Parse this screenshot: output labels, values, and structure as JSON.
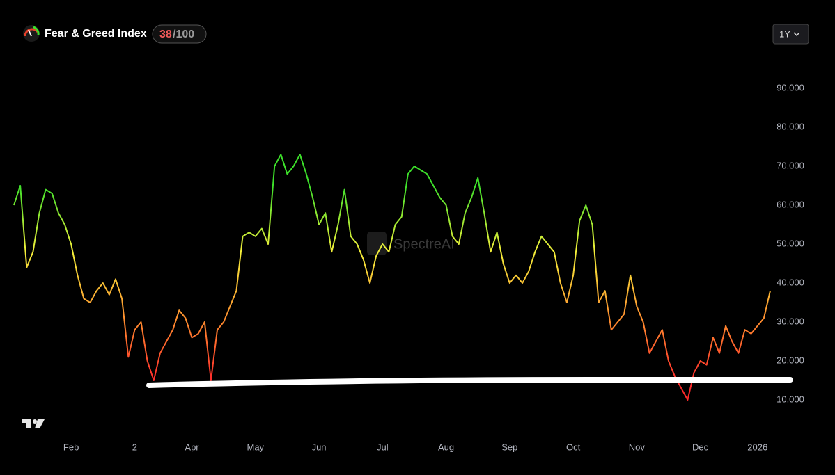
{
  "header": {
    "title": "Fear & Greed Index",
    "badge": {
      "value": 38,
      "total": "/100"
    },
    "range_button": "1Y",
    "watermark": "SpectreAI"
  },
  "chart_data": {
    "type": "line",
    "categories": [
      null,
      null,
      null,
      null,
      null,
      null,
      null,
      null,
      null,
      "Feb",
      null,
      null,
      null,
      null,
      null,
      null,
      null,
      null,
      null,
      "2",
      null,
      null,
      null,
      null,
      null,
      null,
      null,
      null,
      "Apr",
      null,
      null,
      null,
      null,
      null,
      null,
      null,
      null,
      null,
      "May",
      null,
      null,
      null,
      null,
      null,
      null,
      null,
      null,
      null,
      "Jun",
      null,
      null,
      null,
      null,
      null,
      null,
      null,
      null,
      null,
      "Jul",
      null,
      null,
      null,
      null,
      null,
      null,
      null,
      null,
      null,
      "Aug",
      null,
      null,
      null,
      null,
      null,
      null,
      null,
      null,
      null,
      "Sep",
      null,
      null,
      null,
      null,
      null,
      null,
      null,
      null,
      null,
      "Oct",
      null,
      null,
      null,
      null,
      null,
      null,
      null,
      null,
      null,
      "Nov",
      null,
      null,
      null,
      null,
      null,
      null,
      null,
      null,
      null,
      "Dec",
      null,
      null,
      null,
      null,
      null,
      null,
      null,
      null,
      "2026",
      null,
      null
    ],
    "series": [
      {
        "values": [
          60,
          65,
          44,
          48,
          58,
          64,
          63,
          58,
          55,
          50,
          42,
          36,
          35,
          38,
          40,
          37,
          41,
          36,
          21,
          28,
          30,
          20,
          15,
          22,
          25,
          28,
          33,
          31,
          26,
          27,
          30,
          15,
          28,
          30,
          34,
          38,
          52,
          53,
          52,
          54,
          50,
          70,
          73,
          68,
          70,
          73,
          68,
          62,
          55,
          58,
          48,
          55,
          64,
          52,
          50,
          46,
          40,
          47,
          50,
          48,
          55,
          57,
          68,
          70,
          69,
          68,
          65,
          62,
          60,
          52,
          50,
          58,
          62,
          67,
          58,
          48,
          53,
          45,
          40,
          42,
          40,
          43,
          48,
          52,
          50,
          48,
          40,
          35,
          42,
          56,
          60,
          55,
          35,
          38,
          28,
          30,
          32,
          42,
          34,
          30,
          22,
          25,
          28,
          20,
          16,
          13,
          10,
          17,
          20,
          19,
          26,
          22,
          29,
          25,
          22,
          28,
          27,
          29,
          31,
          38
        ]
      }
    ],
    "color_scale": [
      {
        "value": 15,
        "color": "#ff2b2b"
      },
      {
        "value": 30,
        "color": "#ff8a2e"
      },
      {
        "value": 48,
        "color": "#f4ef3a"
      },
      {
        "value": 65,
        "color": "#3de02a"
      }
    ],
    "ylim": [
      0,
      100
    ],
    "yticks": [
      {
        "value": 10,
        "label": "10.000"
      },
      {
        "value": 20,
        "label": "20.000"
      },
      {
        "value": 30,
        "label": "30.000"
      },
      {
        "value": 40,
        "label": "40.000"
      },
      {
        "value": 50,
        "label": "50.000"
      },
      {
        "value": 60,
        "label": "60.000"
      },
      {
        "value": 70,
        "label": "70.000"
      },
      {
        "value": 80,
        "label": "80.000"
      },
      {
        "value": 90,
        "label": "90.000"
      }
    ]
  }
}
